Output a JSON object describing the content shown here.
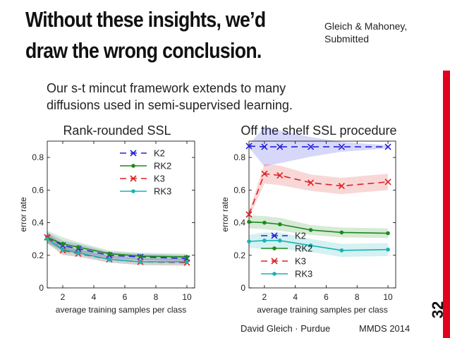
{
  "slide": {
    "title_line1": "Without these insights, we’d",
    "title_line2": "draw the wrong conclusion.",
    "citation_line1": "Gleich & Mahoney,",
    "citation_line2": "Submitted",
    "subtitle_line1": "Our s-t mincut framework extends to many",
    "subtitle_line2": "diffusions used in semi-supervised learning.",
    "footer_author": "David Gleich · Purdue",
    "footer_conference": "MMDS 2014",
    "page_number": "32",
    "accent_color": "#e3001b"
  },
  "chart_data": [
    {
      "type": "line",
      "title": "Rank-rounded SSL",
      "xlabel": "average training samples per class",
      "ylabel": "error rate",
      "xlim": [
        1,
        10.5
      ],
      "ylim": [
        0,
        0.9
      ],
      "xticks": [
        2,
        4,
        6,
        8,
        10
      ],
      "yticks": [
        0,
        0.2,
        0.4,
        0.6,
        0.8
      ],
      "ytick_labels": [
        "0",
        "0.2",
        "0.4",
        "0.6",
        "0.8"
      ],
      "legend_position": "top-right",
      "x": [
        1,
        2,
        3,
        5,
        7,
        10
      ],
      "series": [
        {
          "name": "K2",
          "color": "#2222dd",
          "style": "dashed",
          "marker": "x",
          "values": [
            0.31,
            0.26,
            0.24,
            0.2,
            0.19,
            0.18
          ],
          "band": [
            0.03,
            0.03,
            0.03,
            0.02,
            0.02,
            0.02
          ]
        },
        {
          "name": "RK2",
          "color": "#1b8a1b",
          "style": "solid",
          "marker": "dot",
          "values": [
            0.31,
            0.27,
            0.25,
            0.21,
            0.195,
            0.19
          ],
          "band": [
            0.04,
            0.04,
            0.03,
            0.02,
            0.02,
            0.02
          ]
        },
        {
          "name": "K3",
          "color": "#dd2222",
          "style": "dashed",
          "marker": "x",
          "values": [
            0.31,
            0.23,
            0.21,
            0.175,
            0.16,
            0.155
          ],
          "band": [
            0.03,
            0.03,
            0.02,
            0.02,
            0.02,
            0.02
          ]
        },
        {
          "name": "RK3",
          "color": "#17b3b3",
          "style": "solid",
          "marker": "dot",
          "values": [
            0.3,
            0.235,
            0.215,
            0.175,
            0.16,
            0.16
          ],
          "band": [
            0.03,
            0.03,
            0.02,
            0.02,
            0.02,
            0.02
          ]
        }
      ]
    },
    {
      "type": "line",
      "title": "Off the shelf SSL procedure",
      "xlabel": "average training samples per class",
      "ylabel": "error rate",
      "xlim": [
        1,
        10.5
      ],
      "ylim": [
        0,
        0.9
      ],
      "xticks": [
        2,
        4,
        6,
        8,
        10
      ],
      "yticks": [
        0,
        0.2,
        0.4,
        0.6,
        0.8
      ],
      "ytick_labels": [
        "0",
        "0.2",
        "0.4",
        "0.6",
        "0.8"
      ],
      "legend_position": "bottom-left",
      "x": [
        1,
        2,
        3,
        5,
        7,
        10
      ],
      "series": [
        {
          "name": "K2",
          "color": "#2222dd",
          "style": "dashed",
          "marker": "x",
          "values": [
            0.87,
            0.865,
            0.865,
            0.865,
            0.865,
            0.865
          ],
          "band": [
            0.01,
            0.12,
            0.1,
            0.06,
            0.03,
            0.01
          ]
        },
        {
          "name": "RK2",
          "color": "#1b8a1b",
          "style": "solid",
          "marker": "dot",
          "values": [
            0.405,
            0.4,
            0.39,
            0.355,
            0.34,
            0.335
          ],
          "band": [
            0.04,
            0.04,
            0.04,
            0.03,
            0.03,
            0.03
          ]
        },
        {
          "name": "K3",
          "color": "#dd2222",
          "style": "dashed",
          "marker": "x",
          "values": [
            0.45,
            0.7,
            0.69,
            0.645,
            0.625,
            0.65
          ],
          "band": [
            0.02,
            0.06,
            0.06,
            0.05,
            0.05,
            0.05
          ]
        },
        {
          "name": "RK3",
          "color": "#17b3b3",
          "style": "solid",
          "marker": "dot",
          "values": [
            0.285,
            0.29,
            0.29,
            0.26,
            0.23,
            0.235
          ],
          "band": [
            0.04,
            0.05,
            0.05,
            0.04,
            0.04,
            0.04
          ]
        }
      ]
    }
  ]
}
